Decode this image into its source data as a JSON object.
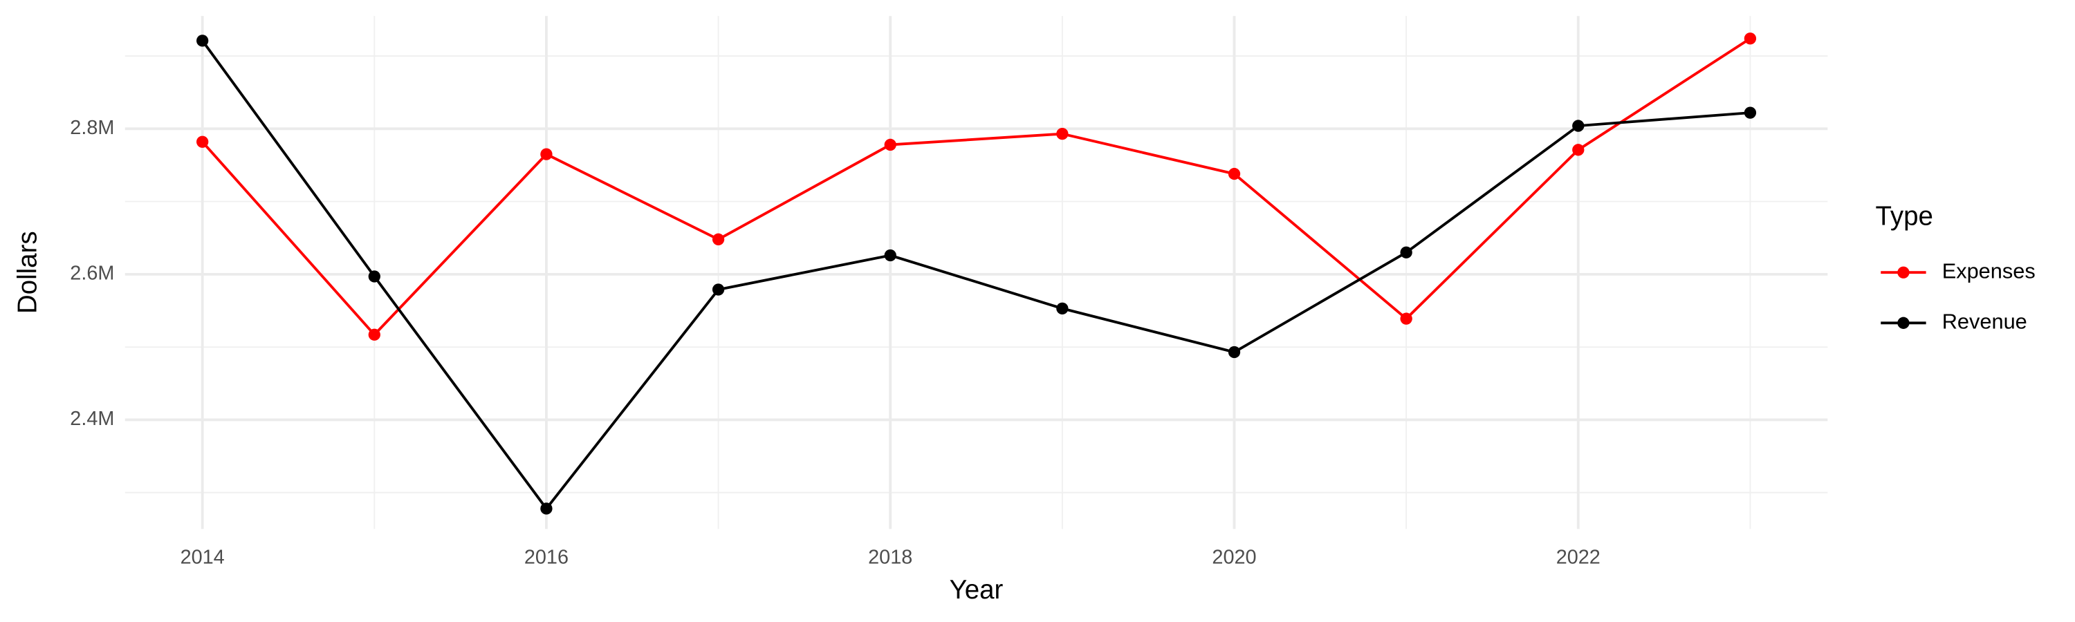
{
  "chart_data": {
    "type": "line",
    "x_label": "Year",
    "y_label": "Dollars",
    "x": [
      2014,
      2015,
      2016,
      2017,
      2018,
      2019,
      2020,
      2021,
      2022,
      2023
    ],
    "series": [
      {
        "name": "Expenses",
        "color": "#ff0000",
        "values": [
          2782000,
          2517000,
          2765000,
          2648000,
          2778000,
          2793000,
          2738000,
          2539000,
          2771000,
          2924000
        ]
      },
      {
        "name": "Revenue",
        "color": "#000000",
        "values": [
          2921000,
          2597000,
          2278000,
          2579000,
          2626000,
          2553000,
          2493000,
          2630000,
          2804000,
          2822000
        ]
      }
    ],
    "xlim": [
      2013.55,
      2023.45
    ],
    "xticks": [
      2014,
      2016,
      2018,
      2020,
      2022
    ],
    "x_minor_ticks": [
      2015,
      2017,
      2019,
      2021,
      2023
    ],
    "ylim": [
      2250000,
      2955000
    ],
    "yticks": [
      {
        "value": 2400000,
        "label": "2.4M"
      },
      {
        "value": 2600000,
        "label": "2.6M"
      },
      {
        "value": 2800000,
        "label": "2.8M"
      }
    ],
    "y_minor_ticks": [
      2300000,
      2500000,
      2700000,
      2900000
    ],
    "grid": true,
    "legend_title": "Type",
    "legend_position": "right"
  }
}
